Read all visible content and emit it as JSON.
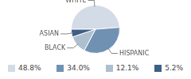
{
  "chart_data": {
    "type": "pie",
    "categories": [
      "WHITE",
      "HISPANIC",
      "BLACK",
      "ASIAN"
    ],
    "values": [
      48.8,
      34.0,
      12.1,
      5.2
    ],
    "value_labels": [
      "48.8%",
      "34.0%",
      "12.1%",
      "5.2%"
    ],
    "colors": [
      "#d3dbe6",
      "#7191b3",
      "#aebfd0",
      "#3f6086"
    ]
  }
}
